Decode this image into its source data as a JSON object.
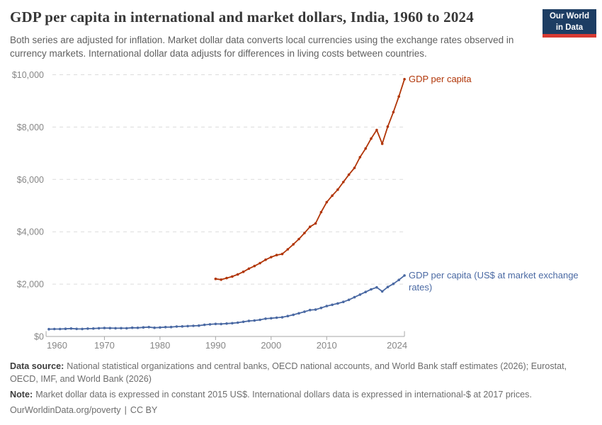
{
  "header": {
    "title": "GDP per capita in international and market dollars, India, 1960 to 2024",
    "subtitle": "Both series are adjusted for inflation. Market dollar data converts local currencies using the exchange rates observed in currency markets. International dollar data adjusts for differences in living costs between countries."
  },
  "logo": {
    "line1": "Our World",
    "line2": "in Data",
    "bg_color": "#1d3d63",
    "stripe_color": "#d73a32"
  },
  "chart_data": {
    "type": "line",
    "title": "GDP per capita in international and market dollars, India, 1960 to 2024",
    "grid": "horizontal-dashed",
    "legend_position": "end-of-line",
    "xlim": [
      1959.5,
      2024
    ],
    "ylim": [
      0,
      10000
    ],
    "x_ticks": [
      {
        "value": 1960,
        "label": "1960"
      },
      {
        "value": 1970,
        "label": "1970"
      },
      {
        "value": 1980,
        "label": "1980"
      },
      {
        "value": 1990,
        "label": "1990"
      },
      {
        "value": 2000,
        "label": "2000"
      },
      {
        "value": 2010,
        "label": "2010"
      },
      {
        "value": 2024,
        "label": "2024"
      }
    ],
    "y_ticks": [
      {
        "value": 0,
        "label": "$0"
      },
      {
        "value": 2000,
        "label": "$2,000"
      },
      {
        "value": 4000,
        "label": "$4,000"
      },
      {
        "value": 6000,
        "label": "$6,000"
      },
      {
        "value": 8000,
        "label": "$8,000"
      },
      {
        "value": 10000,
        "label": "$10,000"
      }
    ],
    "series": [
      {
        "name": "GDP per capita",
        "label_lines": [
          "GDP per capita"
        ],
        "color": "#b13507",
        "unit": "international-$ at 2017 prices",
        "years": [
          1990,
          1991,
          1992,
          1993,
          1994,
          1995,
          1996,
          1997,
          1998,
          1999,
          2000,
          2001,
          2002,
          2003,
          2004,
          2005,
          2006,
          2007,
          2008,
          2009,
          2010,
          2011,
          2012,
          2013,
          2014,
          2015,
          2016,
          2017,
          2018,
          2019,
          2020,
          2021,
          2022,
          2023,
          2024
        ],
        "values": [
          2200,
          2170,
          2230,
          2290,
          2370,
          2470,
          2590,
          2690,
          2800,
          2930,
          3030,
          3110,
          3150,
          3330,
          3520,
          3720,
          3950,
          4190,
          4320,
          4750,
          5130,
          5380,
          5610,
          5900,
          6180,
          6440,
          6850,
          7180,
          7560,
          7890,
          7360,
          8020,
          8570,
          9170,
          9830
        ]
      },
      {
        "name": "GDP per capita (US$ at market exchange rates)",
        "label_lines": [
          "GDP per capita (US$ at market exchange",
          "rates)"
        ],
        "color": "#4a69a3",
        "unit": "constant 2015 US$",
        "years": [
          1960,
          1961,
          1962,
          1963,
          1964,
          1965,
          1966,
          1967,
          1968,
          1969,
          1970,
          1971,
          1972,
          1973,
          1974,
          1975,
          1976,
          1977,
          1978,
          1979,
          1980,
          1981,
          1982,
          1983,
          1984,
          1985,
          1986,
          1987,
          1988,
          1989,
          1990,
          1991,
          1992,
          1993,
          1994,
          1995,
          1996,
          1997,
          1998,
          1999,
          2000,
          2001,
          2002,
          2003,
          2004,
          2005,
          2006,
          2007,
          2008,
          2009,
          2010,
          2011,
          2012,
          2013,
          2014,
          2015,
          2016,
          2017,
          2018,
          2019,
          2020,
          2021,
          2022,
          2023,
          2024
        ],
        "values": [
          280,
          283,
          285,
          292,
          303,
          290,
          288,
          300,
          304,
          313,
          321,
          320,
          313,
          317,
          313,
          332,
          330,
          346,
          357,
          332,
          344,
          356,
          360,
          378,
          384,
          396,
          406,
          414,
          444,
          462,
          480,
          475,
          492,
          506,
          529,
          561,
          594,
          609,
          637,
          680,
          695,
          718,
          733,
          780,
          828,
          885,
          945,
          1010,
          1025,
          1090,
          1160,
          1210,
          1260,
          1320,
          1400,
          1500,
          1600,
          1700,
          1800,
          1875,
          1720,
          1890,
          2010,
          2160,
          2330
        ]
      }
    ]
  },
  "footer": {
    "source_label": "Data source:",
    "source_text": "National statistical organizations and central banks, OECD national accounts, and World Bank staff estimates (2026); Eurostat, OECD, IMF, and World Bank (2026)",
    "note_label": "Note:",
    "note_text": "Market dollar data is expressed in constant 2015 US$. International dollars data is expressed in international-$ at 2017 prices.",
    "link": "OurWorldinData.org/poverty",
    "separator": "|",
    "license": "CC BY"
  }
}
